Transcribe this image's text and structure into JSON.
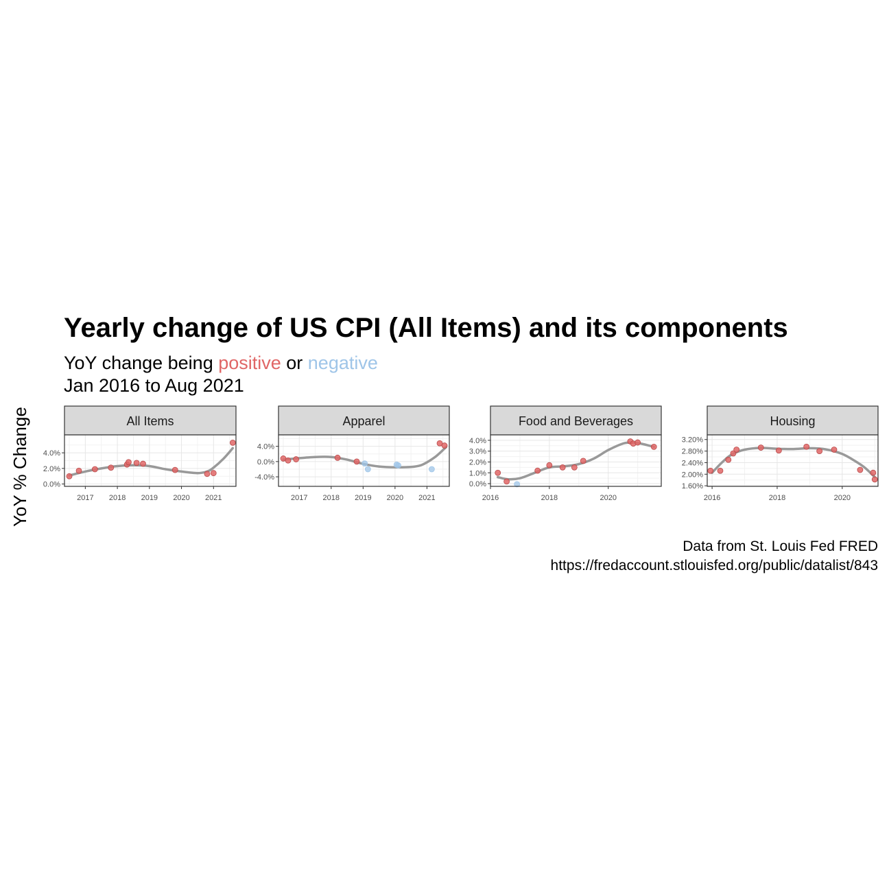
{
  "title": "Yearly change of US CPI (All Items) and its components",
  "subtitle": {
    "prefix": "YoY change being ",
    "positive_word": "positive",
    "middle": " or ",
    "negative_word": "negative",
    "line2": "Jan 2016 to Aug 2021"
  },
  "colors": {
    "positive": "#e06666",
    "negative": "#9fc5e8",
    "smooth": "#999999"
  },
  "ylabel": "YoY % Change",
  "caption": {
    "line1": "Data from St. Louis Fed FRED",
    "line2": "https://fredaccount.stlouisfed.org/public/datalist/843"
  },
  "chart_data": [
    {
      "type": "scatter",
      "facet": "All Items",
      "xlim": [
        2016.35,
        2021.7
      ],
      "ylim": [
        -0.3,
        6.3
      ],
      "x_ticks": [
        2017,
        2018,
        2019,
        2020,
        2021
      ],
      "x_tick_labels": [
        "2017",
        "2018",
        "2019",
        "2020",
        "2021"
      ],
      "y_ticks": [
        0,
        2,
        4
      ],
      "y_tick_labels": [
        "0.0%",
        "2.0%",
        "4.0%"
      ],
      "points": [
        {
          "x": 2016.5,
          "y": 1.0
        },
        {
          "x": 2016.8,
          "y": 1.7
        },
        {
          "x": 2017.3,
          "y": 1.9
        },
        {
          "x": 2017.8,
          "y": 2.1
        },
        {
          "x": 2018.3,
          "y": 2.5
        },
        {
          "x": 2018.35,
          "y": 2.8
        },
        {
          "x": 2018.6,
          "y": 2.7
        },
        {
          "x": 2018.8,
          "y": 2.6
        },
        {
          "x": 2019.8,
          "y": 1.8
        },
        {
          "x": 2020.8,
          "y": 1.3
        },
        {
          "x": 2021.0,
          "y": 1.4
        },
        {
          "x": 2021.6,
          "y": 5.3
        }
      ],
      "smooth": {
        "x": [
          2016.5,
          2017.0,
          2017.5,
          2018.0,
          2018.5,
          2019.0,
          2019.5,
          2020.0,
          2020.5,
          2020.8,
          2021.0,
          2021.3,
          2021.6
        ],
        "y": [
          1.1,
          1.6,
          2.0,
          2.3,
          2.4,
          2.3,
          1.9,
          1.6,
          1.4,
          1.6,
          2.1,
          3.2,
          4.6
        ]
      }
    },
    {
      "type": "scatter",
      "facet": "Apparel",
      "xlim": [
        2016.35,
        2021.7
      ],
      "ylim": [
        -6.5,
        7.0
      ],
      "x_ticks": [
        2017,
        2018,
        2019,
        2020,
        2021
      ],
      "x_tick_labels": [
        "2017",
        "2018",
        "2019",
        "2020",
        "2021"
      ],
      "y_ticks": [
        -4,
        0,
        4
      ],
      "y_tick_labels": [
        "-4.0%",
        "0.0%",
        "4.0%"
      ],
      "points": [
        {
          "x": 2016.5,
          "y": 0.8
        },
        {
          "x": 2016.65,
          "y": 0.3
        },
        {
          "x": 2016.9,
          "y": 0.6
        },
        {
          "x": 2018.2,
          "y": 1.0
        },
        {
          "x": 2018.8,
          "y": 0.0
        },
        {
          "x": 2019.05,
          "y": -0.5
        },
        {
          "x": 2019.15,
          "y": -2.0
        },
        {
          "x": 2020.05,
          "y": -0.8
        },
        {
          "x": 2020.1,
          "y": -1.0
        },
        {
          "x": 2021.15,
          "y": -2.0
        },
        {
          "x": 2021.4,
          "y": 4.8
        },
        {
          "x": 2021.55,
          "y": 4.2
        }
      ],
      "smooth": {
        "x": [
          2016.5,
          2017.0,
          2017.5,
          2018.0,
          2018.5,
          2019.0,
          2019.5,
          2020.0,
          2020.5,
          2020.8,
          2021.0,
          2021.3,
          2021.6
        ],
        "y": [
          0.5,
          0.9,
          1.2,
          1.2,
          0.5,
          -0.6,
          -1.3,
          -1.5,
          -1.4,
          -1.0,
          -0.2,
          1.5,
          3.8
        ]
      }
    },
    {
      "type": "scatter",
      "facet": "Food and Beverages",
      "xlim": [
        2016.0,
        2021.8
      ],
      "ylim": [
        -0.25,
        4.5
      ],
      "x_ticks": [
        2016,
        2018,
        2020
      ],
      "x_tick_labels": [
        "2016",
        "2018",
        "2020"
      ],
      "y_ticks": [
        0,
        1,
        2,
        3,
        4
      ],
      "y_tick_labels": [
        "0.0%",
        "1.0%",
        "2.0%",
        "3.0%",
        "4.0%"
      ],
      "points": [
        {
          "x": 2016.25,
          "y": 1.0
        },
        {
          "x": 2016.55,
          "y": 0.2
        },
        {
          "x": 2016.9,
          "y": -0.05
        },
        {
          "x": 2017.6,
          "y": 1.2
        },
        {
          "x": 2018.0,
          "y": 1.7
        },
        {
          "x": 2018.45,
          "y": 1.5
        },
        {
          "x": 2018.85,
          "y": 1.5
        },
        {
          "x": 2019.15,
          "y": 2.1
        },
        {
          "x": 2020.75,
          "y": 3.9
        },
        {
          "x": 2020.85,
          "y": 3.7
        },
        {
          "x": 2021.0,
          "y": 3.8
        },
        {
          "x": 2021.55,
          "y": 3.4
        }
      ],
      "smooth": {
        "x": [
          2016.25,
          2016.6,
          2017.0,
          2017.5,
          2018.0,
          2018.5,
          2019.0,
          2019.5,
          2020.0,
          2020.5,
          2020.8,
          2021.1,
          2021.55
        ],
        "y": [
          0.6,
          0.4,
          0.5,
          1.0,
          1.5,
          1.6,
          1.8,
          2.3,
          3.1,
          3.7,
          3.8,
          3.7,
          3.4
        ]
      }
    },
    {
      "type": "scatter",
      "facet": "Housing",
      "xlim": [
        2015.85,
        2021.1
      ],
      "ylim": [
        1.58,
        3.36
      ],
      "x_ticks": [
        2016,
        2018,
        2020
      ],
      "x_tick_labels": [
        "2016",
        "2018",
        "2020"
      ],
      "y_ticks": [
        1.6,
        2.0,
        2.4,
        2.8,
        3.2
      ],
      "y_tick_labels": [
        "1.60%",
        "2.00%",
        "2.40%",
        "2.80%",
        "3.20%"
      ],
      "points": [
        {
          "x": 2015.95,
          "y": 2.12
        },
        {
          "x": 2016.25,
          "y": 2.12
        },
        {
          "x": 2016.5,
          "y": 2.5
        },
        {
          "x": 2016.65,
          "y": 2.72
        },
        {
          "x": 2016.75,
          "y": 2.85
        },
        {
          "x": 2017.5,
          "y": 2.92
        },
        {
          "x": 2018.05,
          "y": 2.82
        },
        {
          "x": 2018.9,
          "y": 2.95
        },
        {
          "x": 2019.3,
          "y": 2.8
        },
        {
          "x": 2019.75,
          "y": 2.85
        },
        {
          "x": 2020.55,
          "y": 2.15
        },
        {
          "x": 2020.95,
          "y": 2.05
        },
        {
          "x": 2021.0,
          "y": 1.82
        }
      ],
      "smooth": {
        "x": [
          2016.0,
          2016.3,
          2016.6,
          2017.0,
          2017.5,
          2018.0,
          2018.5,
          2019.0,
          2019.5,
          2020.0,
          2020.4,
          2020.7,
          2021.0
        ],
        "y": [
          2.05,
          2.4,
          2.68,
          2.85,
          2.91,
          2.88,
          2.87,
          2.9,
          2.86,
          2.7,
          2.45,
          2.22,
          1.9
        ]
      }
    }
  ]
}
